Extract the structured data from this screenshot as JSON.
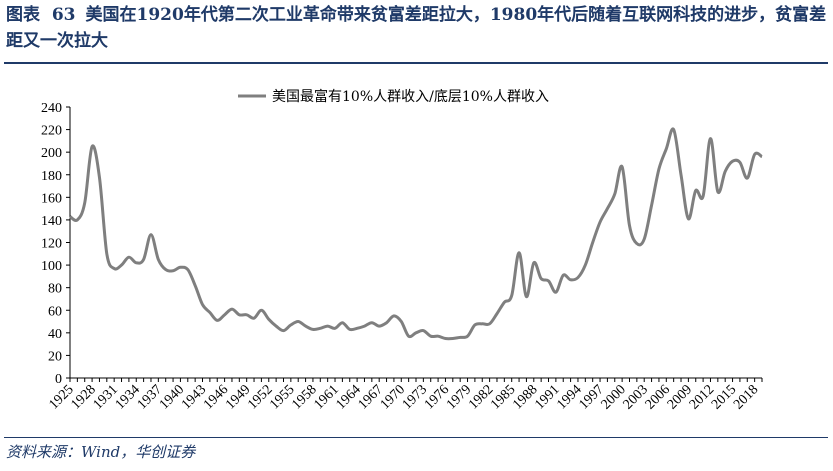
{
  "figure": {
    "label": "图表",
    "number": "63",
    "title": "美国在1920年代第二次工业革命带来贫富差距拉大，1980年代后随着互联网科技的进步，贫富差距又一次拉大",
    "source": "资料来源：Wind，华创证券"
  },
  "colors": {
    "series": "#7f7f7f",
    "title": "#1f3a68",
    "axis": "#000000"
  },
  "chart_data": {
    "type": "line",
    "title": "",
    "xlabel": "",
    "ylabel": "",
    "ylim": [
      0,
      240
    ],
    "yticks": [
      0,
      20,
      40,
      60,
      80,
      100,
      120,
      140,
      160,
      180,
      200,
      220,
      240
    ],
    "xticks": [
      "1925",
      "1928",
      "1931",
      "1934",
      "1937",
      "1940",
      "1943",
      "1946",
      "1949",
      "1952",
      "1955",
      "1958",
      "1961",
      "1964",
      "1967",
      "1970",
      "1973",
      "1976",
      "1979",
      "1982",
      "1985",
      "1988",
      "1991",
      "1994",
      "1997",
      "2000",
      "2003",
      "2006",
      "2009",
      "2012",
      "2015",
      "2018"
    ],
    "legend_position": "top-center",
    "grid": false,
    "series": [
      {
        "name": "美国最富有10%人群收入/底层10%人群收入",
        "x": [
          1925,
          1926,
          1927,
          1928,
          1929,
          1930,
          1931,
          1932,
          1933,
          1934,
          1935,
          1936,
          1937,
          1938,
          1939,
          1940,
          1941,
          1942,
          1943,
          1944,
          1945,
          1946,
          1947,
          1948,
          1949,
          1950,
          1951,
          1952,
          1953,
          1954,
          1955,
          1956,
          1957,
          1958,
          1959,
          1960,
          1961,
          1962,
          1963,
          1964,
          1965,
          1966,
          1967,
          1968,
          1969,
          1970,
          1971,
          1972,
          1973,
          1974,
          1975,
          1976,
          1977,
          1978,
          1979,
          1980,
          1981,
          1982,
          1983,
          1984,
          1985,
          1986,
          1987,
          1988,
          1989,
          1990,
          1991,
          1992,
          1993,
          1994,
          1995,
          1996,
          1997,
          1998,
          1999,
          2000,
          2001,
          2002,
          2003,
          2004,
          2005,
          2006,
          2007,
          2008,
          2009,
          2010,
          2011,
          2012,
          2013,
          2014,
          2015,
          2016,
          2017,
          2018,
          2019
        ],
        "values": [
          143,
          140,
          155,
          205,
          178,
          110,
          97,
          100,
          107,
          102,
          105,
          127,
          105,
          96,
          95,
          98,
          96,
          82,
          65,
          58,
          51,
          56,
          61,
          56,
          56,
          53,
          60,
          52,
          46,
          42,
          47,
          50,
          46,
          43,
          44,
          46,
          44,
          49,
          43,
          44,
          46,
          49,
          46,
          49,
          55,
          50,
          37,
          40,
          42,
          37,
          37,
          35,
          35,
          36,
          37,
          47,
          48,
          48,
          57,
          67,
          73,
          111,
          72,
          102,
          88,
          86,
          76,
          91,
          87,
          89,
          100,
          120,
          138,
          150,
          163,
          187,
          135,
          119,
          123,
          153,
          185,
          203,
          220,
          180,
          141,
          166,
          161,
          212,
          165,
          183,
          192,
          191,
          177,
          198,
          196
        ]
      }
    ]
  }
}
